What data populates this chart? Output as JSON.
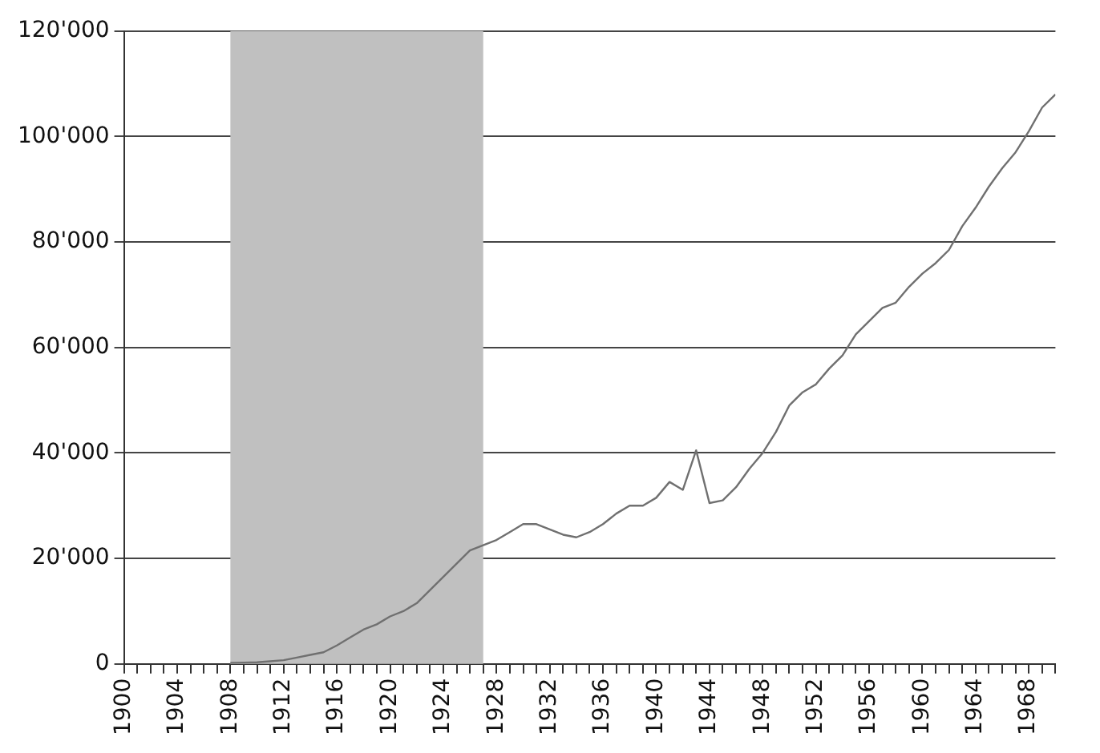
{
  "chart_data": {
    "type": "line",
    "x": [
      1908,
      1909,
      1910,
      1911,
      1912,
      1913,
      1914,
      1915,
      1916,
      1917,
      1918,
      1919,
      1920,
      1921,
      1922,
      1923,
      1924,
      1925,
      1926,
      1927,
      1928,
      1929,
      1930,
      1931,
      1932,
      1933,
      1934,
      1935,
      1936,
      1937,
      1938,
      1939,
      1940,
      1941,
      1942,
      1943,
      1944,
      1945,
      1946,
      1947,
      1948,
      1949,
      1950,
      1951,
      1952,
      1953,
      1954,
      1955,
      1956,
      1957,
      1958,
      1959,
      1960,
      1961,
      1962,
      1963,
      1964,
      1965,
      1966,
      1967,
      1968,
      1969,
      1970
    ],
    "series": [
      {
        "color": "#707070",
        "values": [
          200,
          250,
          300,
          500,
          700,
          1200,
          1700,
          2200,
          3500,
          5000,
          6500,
          7500,
          9000,
          10000,
          11500,
          14000,
          16500,
          19000,
          21500,
          22500,
          23500,
          25000,
          26500,
          26500,
          25500,
          24500,
          24000,
          25000,
          26500,
          28500,
          30000,
          30000,
          31500,
          34500,
          33000,
          40500,
          30500,
          31000,
          33500,
          37000,
          40000,
          44000,
          49000,
          51500,
          53000,
          56000,
          58500,
          62500,
          65000,
          67500,
          68500,
          71500,
          74000,
          76000,
          78500,
          83000,
          86500,
          90500,
          94000,
          97000,
          101000,
          105500,
          108000
        ]
      }
    ],
    "xlim": [
      1900,
      1970
    ],
    "xticks": [
      1900,
      {
        "value": 1901,
        "label": null
      },
      {
        "value": 1902,
        "label": null
      },
      {
        "value": 1903,
        "label": null
      },
      1904,
      {
        "value": 1905,
        "label": null
      },
      {
        "value": 1906,
        "label": null
      },
      {
        "value": 1907,
        "label": null
      },
      1908,
      {
        "value": 1909,
        "label": null
      },
      {
        "value": 1910,
        "label": null
      },
      {
        "value": 1911,
        "label": null
      },
      1912,
      {
        "value": 1913,
        "label": null
      },
      {
        "value": 1914,
        "label": null
      },
      {
        "value": 1915,
        "label": null
      },
      1916,
      {
        "value": 1917,
        "label": null
      },
      {
        "value": 1918,
        "label": null
      },
      {
        "value": 1919,
        "label": null
      },
      1920,
      {
        "value": 1921,
        "label": null
      },
      {
        "value": 1922,
        "label": null
      },
      {
        "value": 1923,
        "label": null
      },
      1924,
      {
        "value": 1925,
        "label": null
      },
      {
        "value": 1926,
        "label": null
      },
      {
        "value": 1927,
        "label": null
      },
      1928,
      {
        "value": 1929,
        "label": null
      },
      {
        "value": 1930,
        "label": null
      },
      {
        "value": 1931,
        "label": null
      },
      1932,
      {
        "value": 1933,
        "label": null
      },
      {
        "value": 1934,
        "label": null
      },
      {
        "value": 1935,
        "label": null
      },
      1936,
      {
        "value": 1937,
        "label": null
      },
      {
        "value": 1938,
        "label": null
      },
      {
        "value": 1939,
        "label": null
      },
      1940,
      {
        "value": 1941,
        "label": null
      },
      {
        "value": 1942,
        "label": null
      },
      {
        "value": 1943,
        "label": null
      },
      1944,
      {
        "value": 1945,
        "label": null
      },
      {
        "value": 1946,
        "label": null
      },
      {
        "value": 1947,
        "label": null
      },
      1948,
      {
        "value": 1949,
        "label": null
      },
      {
        "value": 1950,
        "label": null
      },
      {
        "value": 1951,
        "label": null
      },
      1952,
      {
        "value": 1953,
        "label": null
      },
      {
        "value": 1954,
        "label": null
      },
      {
        "value": 1955,
        "label": null
      },
      1956,
      {
        "value": 1957,
        "label": null
      },
      {
        "value": 1958,
        "label": null
      },
      {
        "value": 1959,
        "label": null
      },
      1960,
      {
        "value": 1961,
        "label": null
      },
      {
        "value": 1962,
        "label": null
      },
      {
        "value": 1963,
        "label": null
      },
      1964,
      {
        "value": 1965,
        "label": null
      },
      {
        "value": 1966,
        "label": null
      },
      {
        "value": 1967,
        "label": null
      },
      1968,
      {
        "value": 1969,
        "label": null
      },
      {
        "value": 1970,
        "label": null
      }
    ],
    "ylim": [
      0,
      120000
    ],
    "yticks": [
      0,
      {
        "value": 20000,
        "label": "20'000"
      },
      {
        "value": 40000,
        "label": "40'000"
      },
      {
        "value": 60000,
        "label": "60'000"
      },
      {
        "value": 80000,
        "label": "80'000"
      },
      {
        "value": 100000,
        "label": "100'000"
      },
      {
        "value": 120000,
        "label": "120'000"
      }
    ],
    "bands": [
      {
        "axis": "x",
        "from": 1908,
        "to": 1927,
        "color": "#c0c0c0"
      }
    ],
    "grid": "y",
    "marker": "none",
    "line_style": "solid",
    "legend": false
  }
}
